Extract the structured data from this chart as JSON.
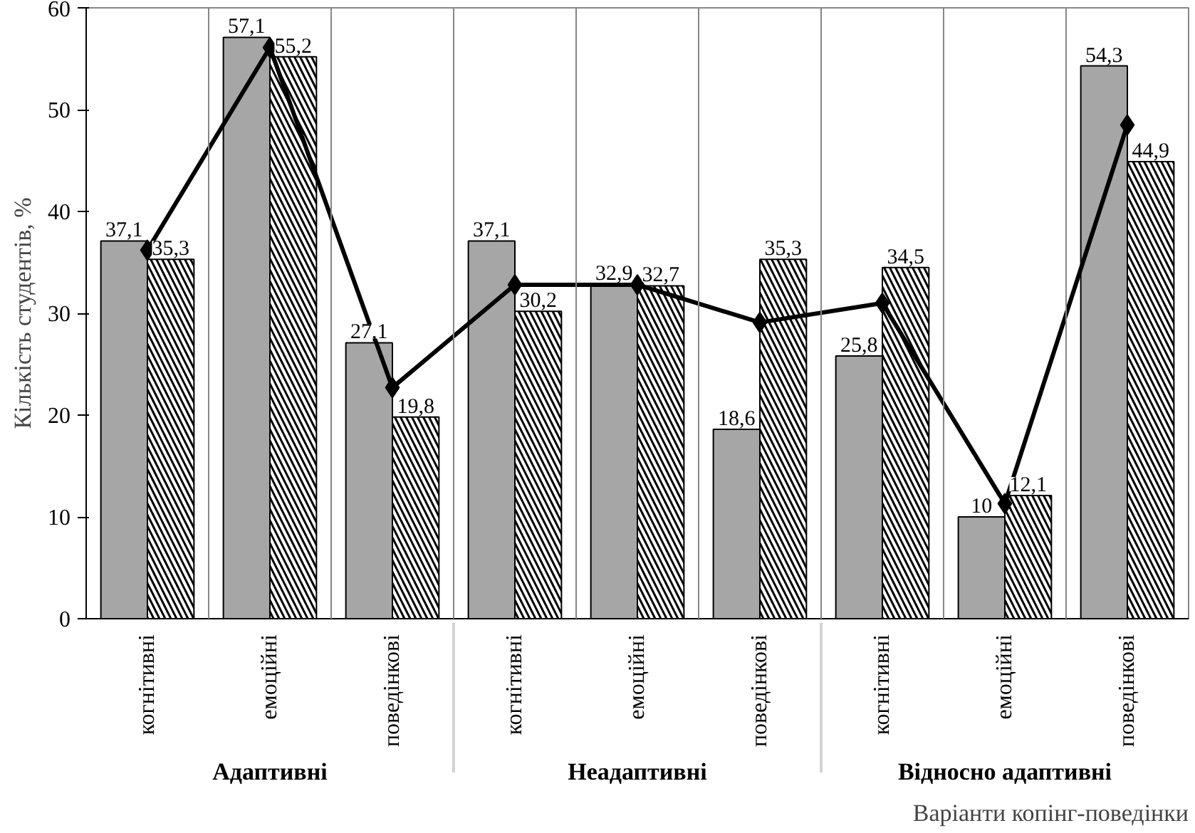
{
  "chart_data": {
    "type": "bar",
    "ylabel": "Кількість студентів, %",
    "xlabel": "Варіанти копінг-поведінки",
    "categories": [
      "когнітивні",
      "емоційні",
      "поведінкові",
      "когнітивні",
      "емоційні",
      "поведінкові",
      "когнітивні",
      "емоційні",
      "поведінкові"
    ],
    "annotations": [
      "Адаптивні",
      "Неадаптивні",
      "Відносно адаптивні"
    ],
    "ylim": [
      0,
      60
    ],
    "yticks": [
      0,
      10,
      20,
      30,
      40,
      50,
      60
    ],
    "grid": "x",
    "series": [
      {
        "color": "#a6a6a6",
        "values": [
          37.1,
          57.1,
          27.1,
          37.1,
          32.9,
          18.6,
          25.8,
          10,
          54.3
        ],
        "value_labels": [
          "37,1",
          "57,1",
          "27,1",
          "37,1",
          "32,9",
          "18,6",
          "25,8",
          "10",
          "54,3"
        ]
      },
      {
        "color": "#ffffff",
        "values": [
          35.3,
          55.2,
          19.8,
          30.2,
          32.7,
          35.3,
          34.5,
          12.1,
          44.9
        ],
        "value_labels": [
          "35,3",
          "55,2",
          "19,8",
          "30,2",
          "32,7",
          "35,3",
          "34,5",
          "12,1",
          "44,9"
        ]
      },
      {
        "type": "line",
        "color": "#000000",
        "marker": "diamond",
        "values": [
          36.2,
          56.1,
          22.7,
          32.8,
          32.8,
          29.1,
          31.0,
          11.3,
          48.5
        ]
      }
    ]
  }
}
